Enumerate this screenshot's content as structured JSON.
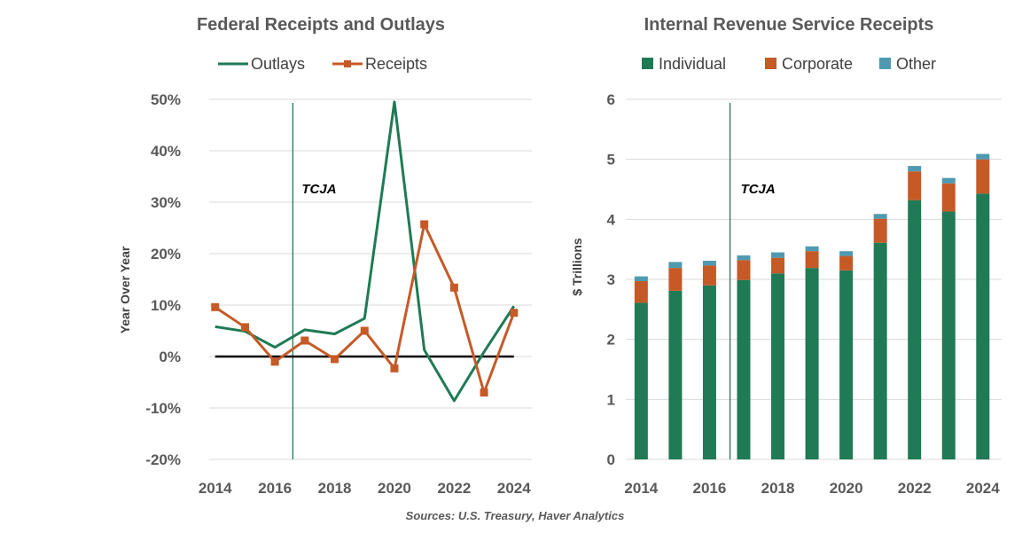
{
  "chart_data": [
    {
      "type": "line",
      "title": "Federal Receipts and Outlays",
      "ylabel": "Year Over Year",
      "xlabel": "",
      "x": [
        2014,
        2015,
        2016,
        2017,
        2018,
        2019,
        2020,
        2021,
        2022,
        2023,
        2024
      ],
      "x_ticks": [
        "2014",
        "2016",
        "2018",
        "2020",
        "2022",
        "2024"
      ],
      "y_ticks": [
        "50%",
        "40%",
        "30%",
        "20%",
        "10%",
        "0%",
        "-10%",
        "-20%"
      ],
      "ylim": [
        -20,
        50
      ],
      "y_unit": "percent",
      "series": [
        {
          "name": "Outlays",
          "color": "#1f7a55",
          "marker": "none",
          "values": [
            5.8,
            4.9,
            1.8,
            5.2,
            4.4,
            7.4,
            49.5,
            1.3,
            -8.6,
            0.9,
            9.8
          ]
        },
        {
          "name": "Receipts",
          "color": "#c55a27",
          "marker": "square",
          "values": [
            9.6,
            5.7,
            -1.0,
            3.1,
            -0.5,
            5.0,
            -2.3,
            25.7,
            13.4,
            -7.0,
            8.5
          ]
        }
      ],
      "reference_line": {
        "value": 0,
        "color": "#000000"
      },
      "event_line": {
        "x": 2016.6,
        "label": "TCJA",
        "color": "#1f7a55"
      },
      "legend_position": "top",
      "grid": true
    },
    {
      "type": "bar",
      "stacked": true,
      "title": "Internal Revenue Service Receipts",
      "ylabel": "$ Trillions",
      "xlabel": "",
      "categories": [
        2014,
        2015,
        2016,
        2017,
        2018,
        2019,
        2020,
        2021,
        2022,
        2023,
        2024
      ],
      "x_ticks": [
        "2014",
        "2016",
        "2018",
        "2020",
        "2022",
        "2024"
      ],
      "y_ticks": [
        "6",
        "5",
        "4",
        "3",
        "2",
        "1",
        "0"
      ],
      "ylim": [
        0,
        6
      ],
      "series": [
        {
          "name": "Individual",
          "color": "#1f7a55",
          "values": [
            2.61,
            2.81,
            2.9,
            2.99,
            3.1,
            3.19,
            3.15,
            3.61,
            4.32,
            4.13,
            4.43
          ]
        },
        {
          "name": "Corporate",
          "color": "#c55a27",
          "values": [
            0.36,
            0.38,
            0.33,
            0.33,
            0.26,
            0.28,
            0.24,
            0.4,
            0.48,
            0.47,
            0.57
          ]
        },
        {
          "name": "Other",
          "color": "#4f9ab0",
          "values": [
            0.08,
            0.1,
            0.08,
            0.08,
            0.09,
            0.08,
            0.08,
            0.08,
            0.09,
            0.09,
            0.09
          ]
        }
      ],
      "event_line": {
        "x": 2016.6,
        "label": "TCJA",
        "color": "#1f7a55"
      },
      "legend_position": "top",
      "grid": true
    }
  ],
  "footer": {
    "source": "Sources: U.S. Treasury, Haver Analytics"
  }
}
